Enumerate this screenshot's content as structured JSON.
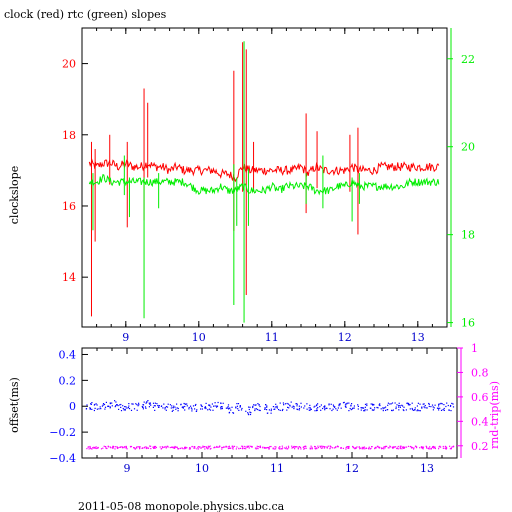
{
  "chart_data": [
    {
      "type": "line",
      "title": "clock (red) rtc (green) slopes",
      "ylabel_left": "clockslope",
      "xlim": [
        8.4,
        13.4
      ],
      "x_ticks": [
        9,
        10,
        11,
        12,
        13
      ],
      "y_left": {
        "lim": [
          12.6,
          21.0
        ],
        "ticks": [
          14,
          16,
          18,
          20
        ],
        "color": "#ff0000"
      },
      "y_right": {
        "lim": [
          15.9,
          22.7
        ],
        "ticks": [
          16,
          18,
          20,
          22
        ],
        "color": "#00ee00"
      },
      "series": [
        {
          "color": "#ff0000",
          "axis": "left",
          "x": [
            8.5,
            8.6,
            8.7,
            8.8,
            8.9,
            9.0,
            9.1,
            9.2,
            9.3,
            9.4,
            9.5,
            9.6,
            9.7,
            9.8,
            9.9,
            10.0,
            10.1,
            10.2,
            10.3,
            10.4,
            10.5,
            10.6,
            10.7,
            10.8,
            10.9,
            11.0,
            11.1,
            11.2,
            11.3,
            11.4,
            11.5,
            11.6,
            11.7,
            11.8,
            11.9,
            12.0,
            12.1,
            12.2,
            12.3,
            12.4,
            12.5,
            12.6,
            12.7,
            12.8,
            12.9,
            13.0,
            13.1,
            13.2,
            13.3
          ],
          "y": [
            17.2,
            17.1,
            17.2,
            17.2,
            17.1,
            17.2,
            17.1,
            17.1,
            17.2,
            17.1,
            17.1,
            17.0,
            17.1,
            17.0,
            17.0,
            17.0,
            17.0,
            17.0,
            16.9,
            16.9,
            16.8,
            17.1,
            17.0,
            17.0,
            17.0,
            17.0,
            17.0,
            17.0,
            17.0,
            17.1,
            16.9,
            17.1,
            17.0,
            17.0,
            17.0,
            17.0,
            17.1,
            17.0,
            17.0,
            17.0,
            17.1,
            17.1,
            17.1,
            17.1,
            17.1,
            17.1,
            17.1,
            17.1,
            17.1
          ],
          "spikes": [
            {
              "x": 8.53,
              "lo": 12.9,
              "hi": 17.8
            },
            {
              "x": 8.58,
              "lo": 15.0,
              "hi": 17.6
            },
            {
              "x": 8.78,
              "lo": 16.6,
              "hi": 18.0
            },
            {
              "x": 9.02,
              "lo": 15.4,
              "hi": 17.8
            },
            {
              "x": 9.25,
              "lo": 15.6,
              "hi": 19.3
            },
            {
              "x": 9.3,
              "lo": 16.8,
              "hi": 18.9
            },
            {
              "x": 10.48,
              "lo": 15.3,
              "hi": 19.8
            },
            {
              "x": 10.6,
              "lo": 16.4,
              "hi": 20.6
            },
            {
              "x": 10.65,
              "lo": 13.5,
              "hi": 20.4
            },
            {
              "x": 10.75,
              "lo": 16.4,
              "hi": 17.8
            },
            {
              "x": 11.47,
              "lo": 15.8,
              "hi": 18.6
            },
            {
              "x": 11.62,
              "lo": 16.5,
              "hi": 18.1
            },
            {
              "x": 12.07,
              "lo": 16.4,
              "hi": 18.0
            },
            {
              "x": 12.18,
              "lo": 15.2,
              "hi": 18.2
            }
          ]
        },
        {
          "color": "#00ee00",
          "axis": "right",
          "x": [
            8.5,
            8.6,
            8.7,
            8.8,
            8.9,
            9.0,
            9.1,
            9.2,
            9.3,
            9.4,
            9.5,
            9.6,
            9.7,
            9.8,
            9.9,
            10.0,
            10.1,
            10.2,
            10.3,
            10.4,
            10.5,
            10.6,
            10.7,
            10.8,
            10.9,
            11.0,
            11.1,
            11.2,
            11.3,
            11.4,
            11.5,
            11.6,
            11.7,
            11.8,
            11.9,
            12.0,
            12.1,
            12.2,
            12.3,
            12.4,
            12.5,
            12.6,
            12.7,
            12.8,
            12.9,
            13.0,
            13.1,
            13.2,
            13.3
          ],
          "y": [
            19.2,
            19.2,
            19.3,
            19.2,
            19.2,
            19.2,
            19.2,
            19.2,
            19.2,
            19.2,
            19.2,
            19.2,
            19.2,
            19.2,
            19.1,
            19.0,
            19.0,
            19.0,
            19.1,
            19.0,
            19.0,
            19.1,
            19.0,
            19.0,
            19.0,
            19.1,
            19.0,
            19.1,
            19.1,
            19.1,
            19.1,
            19.0,
            19.0,
            19.0,
            19.1,
            19.1,
            19.2,
            19.1,
            19.1,
            19.1,
            19.1,
            19.1,
            19.1,
            19.1,
            19.2,
            19.2,
            19.2,
            19.2,
            19.2
          ],
          "spikes": [
            {
              "x": 8.55,
              "lo": 18.1,
              "hi": 19.4
            },
            {
              "x": 8.98,
              "lo": 18.9,
              "hi": 19.8
            },
            {
              "x": 9.05,
              "lo": 18.4,
              "hi": 19.3
            },
            {
              "x": 9.25,
              "lo": 16.1,
              "hi": 19.3
            },
            {
              "x": 9.45,
              "lo": 18.6,
              "hi": 19.4
            },
            {
              "x": 10.48,
              "lo": 16.4,
              "hi": 19.6
            },
            {
              "x": 10.52,
              "lo": 18.2,
              "hi": 19.3
            },
            {
              "x": 10.62,
              "lo": 16.0,
              "hi": 22.4
            },
            {
              "x": 10.68,
              "lo": 18.2,
              "hi": 19.5
            },
            {
              "x": 11.47,
              "lo": 18.7,
              "hi": 19.4
            },
            {
              "x": 11.7,
              "lo": 18.6,
              "hi": 19.8
            },
            {
              "x": 12.1,
              "lo": 18.3,
              "hi": 19.3
            },
            {
              "x": 12.2,
              "lo": 18.7,
              "hi": 19.4
            }
          ]
        }
      ]
    },
    {
      "type": "scatter",
      "ylabel_left": "offset(ms)",
      "ylabel_right": "rnd-trip(ms)",
      "xlim": [
        8.4,
        13.4
      ],
      "x_ticks": [
        9,
        10,
        11,
        12,
        13
      ],
      "y_left": {
        "lim": [
          -0.4,
          0.45
        ],
        "ticks": [
          -0.4,
          -0.2,
          0,
          0.2,
          0.4
        ],
        "tick_labels": [
          "−0.4",
          "−0.2",
          "0",
          "0.2",
          "0.4"
        ],
        "color": "#0000ff"
      },
      "y_right": {
        "lim": [
          0.1,
          1.0
        ],
        "ticks": [
          0.2,
          0.4,
          0.6,
          0.8,
          1
        ],
        "color": "#ff00ff"
      },
      "series": [
        {
          "color": "#0000ff",
          "axis": "left",
          "x": [
            8.5,
            8.6,
            8.7,
            8.8,
            8.9,
            9.0,
            9.1,
            9.2,
            9.3,
            9.4,
            9.5,
            9.6,
            9.7,
            9.8,
            9.9,
            10.0,
            10.1,
            10.2,
            10.3,
            10.4,
            10.5,
            10.6,
            10.7,
            10.8,
            10.9,
            11.0,
            11.1,
            11.2,
            11.3,
            11.4,
            11.5,
            11.6,
            11.7,
            11.8,
            11.9,
            12.0,
            12.1,
            12.2,
            12.3,
            12.4,
            12.5,
            12.6,
            12.7,
            12.8,
            12.9,
            13.0,
            13.1,
            13.2,
            13.3
          ],
          "y": [
            0.01,
            0.0,
            0.01,
            0.02,
            0.0,
            0.0,
            0.0,
            0.01,
            0.02,
            0.0,
            0.0,
            -0.01,
            0.0,
            0.0,
            -0.01,
            0.0,
            0.0,
            0.01,
            0.0,
            -0.02,
            0.0,
            -0.03,
            0.0,
            0.0,
            -0.02,
            0.0,
            0.0,
            0.01,
            0.0,
            0.0,
            0.0,
            -0.01,
            0.0,
            0.0,
            0.01,
            0.0,
            0.0,
            0.0,
            0.0,
            0.0,
            0.0,
            0.0,
            0.0,
            0.0,
            0.0,
            0.0,
            0.0,
            0.0,
            0.0
          ],
          "spread": 0.03
        },
        {
          "color": "#ff00ff",
          "axis": "right",
          "x": [
            8.5,
            8.6,
            8.7,
            8.8,
            8.9,
            9.0,
            9.1,
            9.2,
            9.3,
            9.4,
            9.5,
            9.6,
            9.7,
            9.8,
            9.9,
            10.0,
            10.1,
            10.2,
            10.3,
            10.4,
            10.5,
            10.6,
            10.7,
            10.8,
            10.9,
            11.0,
            11.1,
            11.2,
            11.3,
            11.4,
            11.5,
            11.6,
            11.7,
            11.8,
            11.9,
            12.0,
            12.1,
            12.2,
            12.3,
            12.4,
            12.5,
            12.6,
            12.7,
            12.8,
            12.9,
            13.0,
            13.1,
            13.2,
            13.3
          ],
          "y": [
            0.19,
            0.19,
            0.19,
            0.19,
            0.19,
            0.19,
            0.19,
            0.19,
            0.19,
            0.19,
            0.19,
            0.19,
            0.19,
            0.19,
            0.19,
            0.19,
            0.19,
            0.19,
            0.19,
            0.19,
            0.19,
            0.19,
            0.19,
            0.19,
            0.19,
            0.19,
            0.19,
            0.19,
            0.19,
            0.19,
            0.19,
            0.19,
            0.19,
            0.19,
            0.19,
            0.19,
            0.19,
            0.19,
            0.19,
            0.19,
            0.19,
            0.19,
            0.19,
            0.19,
            0.19,
            0.19,
            0.19,
            0.19,
            0.19
          ],
          "spread": 0.012
        }
      ]
    }
  ],
  "footer": "2011-05-08  monopole.physics.ubc.ca",
  "colors": {
    "axis": "#000000",
    "clock": "#ff0000",
    "rtc": "#00ee00",
    "offset": "#0000ff",
    "rndtrip": "#ff00ff"
  }
}
